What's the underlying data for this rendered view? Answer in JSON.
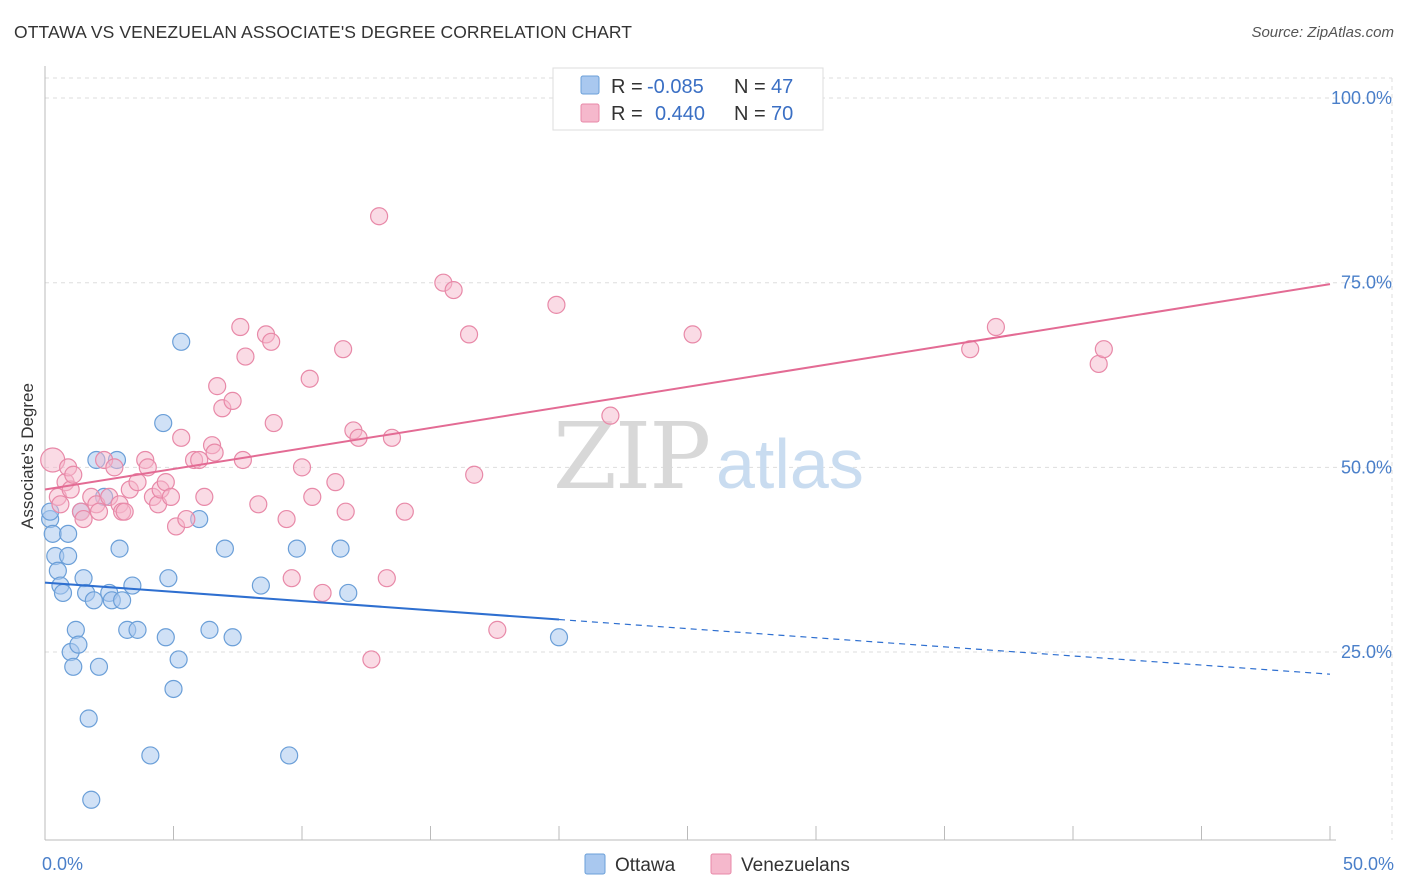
{
  "title": "OTTAWA VS VENEZUELAN ASSOCIATE'S DEGREE CORRELATION CHART",
  "source": "Source: ZipAtlas.com",
  "watermark": {
    "zip": "ZIP",
    "atlas": "atlas"
  },
  "legend_box": {
    "rows": [
      {
        "r_label": "R = ",
        "r_value": "-0.085",
        "n_label": "N = ",
        "n_value": "47",
        "color": "#a9c8ef"
      },
      {
        "r_label": "R = ",
        "r_value": "0.440",
        "n_label": "N = ",
        "n_value": "70",
        "color": "#f5b8cc"
      }
    ]
  },
  "bottom_legend": [
    {
      "label": "Ottawa",
      "color": "#a9c8ef"
    },
    {
      "label": "Venezuelans",
      "color": "#f5b8cc"
    }
  ],
  "colors": {
    "ottawa_fill": "#a9c8ef",
    "ottawa_stroke": "#6b9fd8",
    "ottawa_line": "#2e6fd0",
    "venezuelan_fill": "#f5b8cc",
    "venezuelan_stroke": "#e889a8",
    "venezuelan_line": "#e36b94",
    "tick_text": "#4a7fc9",
    "grid": "#dddddd"
  },
  "chart_data": {
    "type": "scatter",
    "title": "OTTAWA VS VENEZUELAN ASSOCIATE'S DEGREE CORRELATION CHART",
    "xlabel": "",
    "ylabel": "Associate's Degree",
    "xlim": [
      0,
      50
    ],
    "ylim": [
      0,
      102
    ],
    "x_tick_labels": [
      {
        "value": 0,
        "label": "0.0%"
      },
      {
        "value": 50,
        "label": "50.0%"
      }
    ],
    "y_tick_labels": [
      {
        "value": 25,
        "label": "25.0%"
      },
      {
        "value": 50,
        "label": "50.0%"
      },
      {
        "value": 75,
        "label": "75.0%"
      },
      {
        "value": 100,
        "label": "100.0%"
      }
    ],
    "grid": true,
    "legend_position": "top-center",
    "series": [
      {
        "name": "Ottawa",
        "r": -0.085,
        "n": 47,
        "trend": {
          "x0": 0,
          "y0": 34.4,
          "x1": 20,
          "y1": 29.4,
          "dashed_to_x": 50,
          "dashed_to_y": 22.0
        },
        "points": [
          [
            0.2,
            43
          ],
          [
            0.3,
            41
          ],
          [
            0.4,
            38
          ],
          [
            0.5,
            36
          ],
          [
            0.6,
            34
          ],
          [
            0.7,
            33
          ],
          [
            0.9,
            41
          ],
          [
            0.9,
            38
          ],
          [
            1.0,
            25
          ],
          [
            1.1,
            23
          ],
          [
            1.2,
            28
          ],
          [
            1.3,
            26
          ],
          [
            1.4,
            44
          ],
          [
            1.5,
            35
          ],
          [
            1.6,
            33
          ],
          [
            1.7,
            16
          ],
          [
            1.8,
            5
          ],
          [
            1.9,
            32
          ],
          [
            2.0,
            51
          ],
          [
            2.1,
            23
          ],
          [
            2.3,
            46
          ],
          [
            2.5,
            33
          ],
          [
            2.6,
            32
          ],
          [
            2.8,
            51
          ],
          [
            2.9,
            39
          ],
          [
            3.0,
            32
          ],
          [
            3.2,
            28
          ],
          [
            3.4,
            34
          ],
          [
            3.6,
            28
          ],
          [
            4.1,
            11
          ],
          [
            4.6,
            56
          ],
          [
            4.7,
            27
          ],
          [
            4.8,
            35
          ],
          [
            5.0,
            20
          ],
          [
            5.2,
            24
          ],
          [
            5.3,
            67
          ],
          [
            6.0,
            43
          ],
          [
            6.4,
            28
          ],
          [
            7.0,
            39
          ],
          [
            7.3,
            27
          ],
          [
            8.4,
            34
          ],
          [
            9.5,
            11
          ],
          [
            9.8,
            39
          ],
          [
            11.5,
            39
          ],
          [
            11.8,
            33
          ],
          [
            20.0,
            27
          ],
          [
            0.2,
            44
          ]
        ]
      },
      {
        "name": "Venezuelans",
        "r": 0.44,
        "n": 70,
        "trend": {
          "x0": 0,
          "y0": 47.0,
          "x1": 50,
          "y1": 74.8
        },
        "points": [
          [
            0.3,
            51
          ],
          [
            0.5,
            46
          ],
          [
            0.6,
            45
          ],
          [
            0.8,
            48
          ],
          [
            0.9,
            50
          ],
          [
            1.0,
            47
          ],
          [
            1.1,
            49
          ],
          [
            1.4,
            44
          ],
          [
            1.5,
            43
          ],
          [
            1.8,
            46
          ],
          [
            2.0,
            45
          ],
          [
            2.1,
            44
          ],
          [
            2.3,
            51
          ],
          [
            2.5,
            46
          ],
          [
            2.7,
            50
          ],
          [
            2.9,
            45
          ],
          [
            3.0,
            44
          ],
          [
            3.1,
            44
          ],
          [
            3.3,
            47
          ],
          [
            3.6,
            48
          ],
          [
            3.9,
            51
          ],
          [
            4.0,
            50
          ],
          [
            4.2,
            46
          ],
          [
            4.4,
            45
          ],
          [
            4.5,
            47
          ],
          [
            4.7,
            48
          ],
          [
            4.9,
            46
          ],
          [
            5.1,
            42
          ],
          [
            5.3,
            54
          ],
          [
            5.5,
            43
          ],
          [
            5.8,
            51
          ],
          [
            6.0,
            51
          ],
          [
            6.2,
            46
          ],
          [
            6.5,
            53
          ],
          [
            6.6,
            52
          ],
          [
            6.7,
            61
          ],
          [
            6.9,
            58
          ],
          [
            7.3,
            59
          ],
          [
            7.6,
            69
          ],
          [
            7.7,
            51
          ],
          [
            7.8,
            65
          ],
          [
            8.3,
            45
          ],
          [
            8.6,
            68
          ],
          [
            8.8,
            67
          ],
          [
            8.9,
            56
          ],
          [
            9.4,
            43
          ],
          [
            9.6,
            35
          ],
          [
            10.0,
            50
          ],
          [
            10.3,
            62
          ],
          [
            10.4,
            46
          ],
          [
            10.8,
            33
          ],
          [
            11.3,
            48
          ],
          [
            11.6,
            66
          ],
          [
            11.7,
            44
          ],
          [
            12.0,
            55
          ],
          [
            12.2,
            54
          ],
          [
            12.7,
            24
          ],
          [
            13.0,
            84
          ],
          [
            13.3,
            35
          ],
          [
            13.5,
            54
          ],
          [
            14.0,
            44
          ],
          [
            15.5,
            75
          ],
          [
            15.9,
            74
          ],
          [
            16.5,
            68
          ],
          [
            16.7,
            49
          ],
          [
            17.6,
            28
          ],
          [
            19.9,
            72
          ],
          [
            22.0,
            57
          ],
          [
            25.2,
            68
          ],
          [
            36.0,
            66
          ]
        ],
        "extra_points": [
          [
            37.0,
            69
          ],
          [
            41.0,
            64
          ],
          [
            41.2,
            66
          ]
        ]
      }
    ]
  }
}
